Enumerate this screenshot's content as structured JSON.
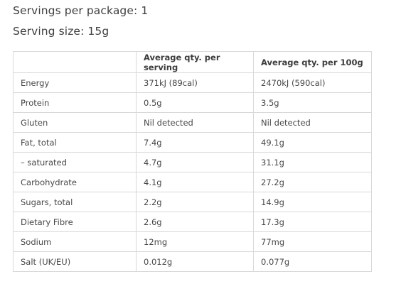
{
  "servings_per_package": "Servings per package: 1",
  "serving_size": "Serving size: 15g",
  "table": {
    "headers": [
      "",
      "Average qty. per serving",
      "Average qty. per 100g"
    ],
    "rows": [
      [
        "Energy",
        "371kJ (89cal)",
        "2470kJ (590cal)"
      ],
      [
        "Protein",
        "0.5g",
        "3.5g"
      ],
      [
        "Gluten",
        "Nil detected",
        "Nil detected"
      ],
      [
        "Fat, total",
        "7.4g",
        "49.1g"
      ],
      [
        "– saturated",
        "4.7g",
        "31.1g"
      ],
      [
        "Carbohydrate",
        "4.1g",
        "27.2g"
      ],
      [
        "Sugars, total",
        "2.2g",
        "14.9g"
      ],
      [
        "Dietary Fibre",
        "2.6g",
        "17.3g"
      ],
      [
        "Sodium",
        "12mg",
        "77mg"
      ],
      [
        "Salt (UK/EU)",
        "0.012g",
        "0.077g"
      ]
    ]
  }
}
